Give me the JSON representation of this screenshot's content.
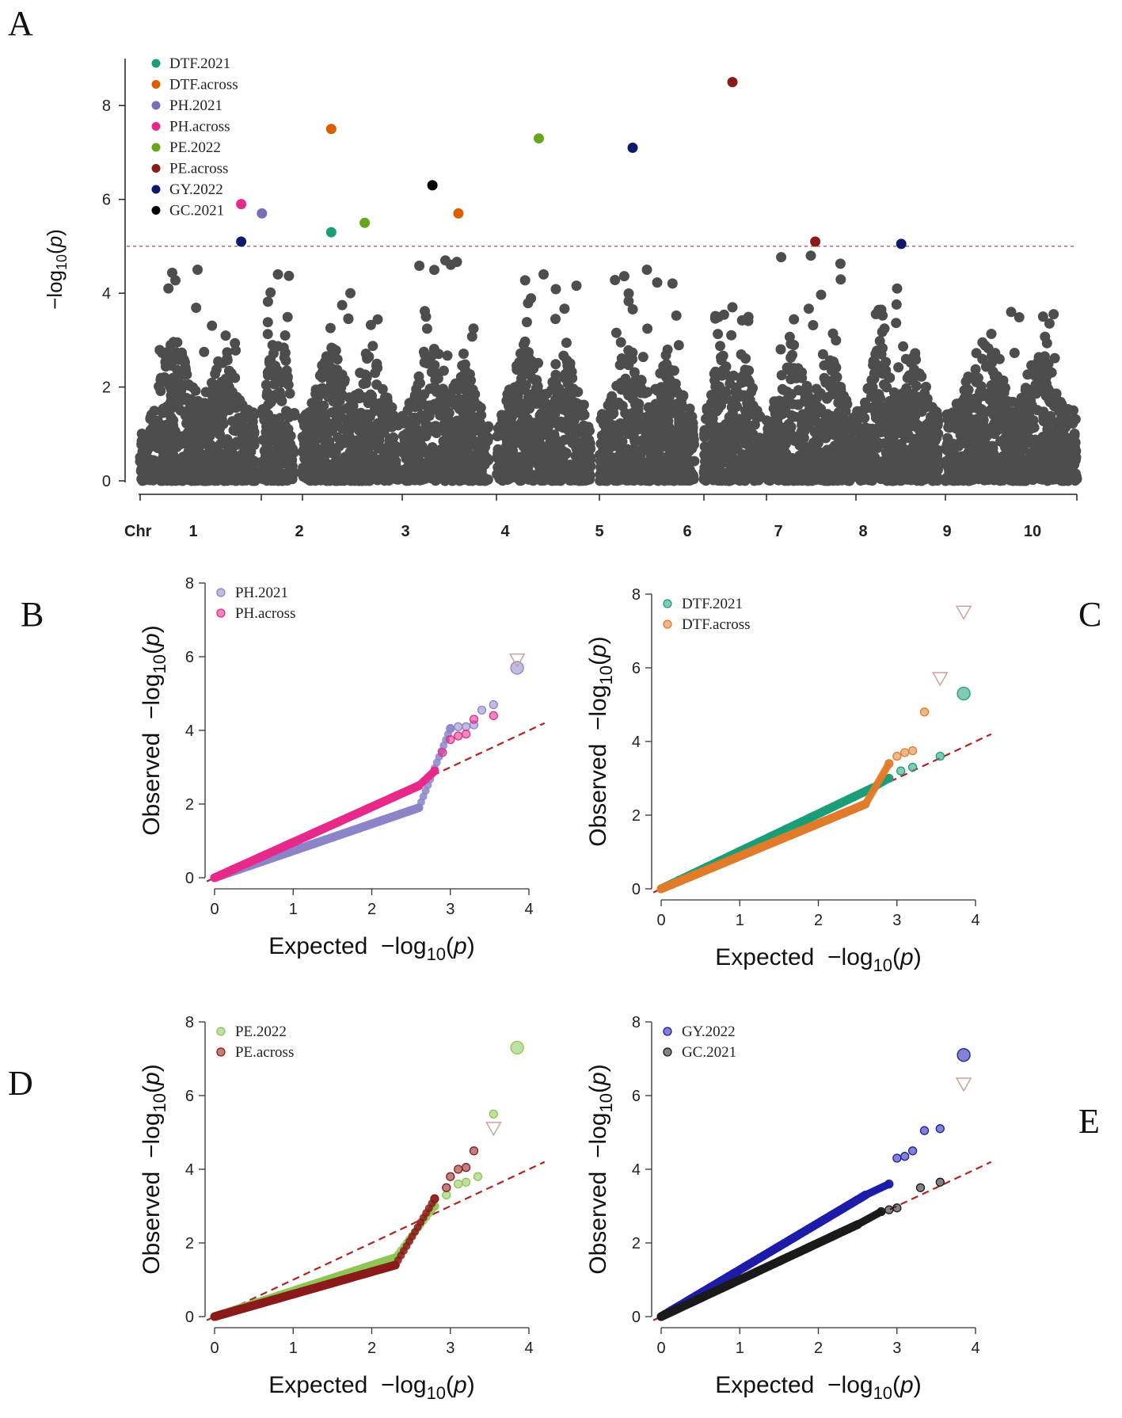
{
  "panel_letters": [
    "A",
    "B",
    "C",
    "D",
    "E"
  ],
  "chart_data": [
    {
      "panel": "A",
      "type": "scatter",
      "subtype": "manhattan",
      "ylabel": "-log10(p)",
      "xlabel": "Chr",
      "ylim": [
        0,
        9
      ],
      "yticks": [
        0,
        2,
        4,
        6,
        8
      ],
      "chromosomes": [
        "1",
        "2",
        "3",
        "4",
        "5",
        "6",
        "7",
        "8",
        "9",
        "10"
      ],
      "threshold": 5,
      "legend": [
        {
          "name": "DTF.2021",
          "color": "#1b9e77"
        },
        {
          "name": "DTF.across",
          "color": "#d95f02"
        },
        {
          "name": "PH.2021",
          "color": "#7570b3"
        },
        {
          "name": "PH.across",
          "color": "#e7298a"
        },
        {
          "name": "PE.2022",
          "color": "#66a61e"
        },
        {
          "name": "PE.across",
          "color": "#8b1a1a"
        },
        {
          "name": "GY.2022",
          "color": "#0d1a6b"
        },
        {
          "name": "GC.2021",
          "color": "#000000"
        }
      ],
      "background_color": "#4d4d4d",
      "significant": [
        {
          "chr": 1,
          "pos": 0.88,
          "trait": "PH.across",
          "y": 5.9
        },
        {
          "chr": 1,
          "pos": 0.88,
          "trait": "GY.2022",
          "y": 5.1
        },
        {
          "chr": 2,
          "pos": 0.02,
          "trait": "PH.2021",
          "y": 5.7
        },
        {
          "chr": 3,
          "pos": 0.3,
          "trait": "DTF.across",
          "y": 7.5
        },
        {
          "chr": 3,
          "pos": 0.3,
          "trait": "DTF.2021",
          "y": 5.3
        },
        {
          "chr": 3,
          "pos": 0.65,
          "trait": "PE.2022",
          "y": 5.5
        },
        {
          "chr": 4,
          "pos": 0.35,
          "trait": "GC.2021",
          "y": 6.3
        },
        {
          "chr": 4,
          "pos": 0.65,
          "trait": "DTF.across",
          "y": 5.7
        },
        {
          "chr": 5,
          "pos": 0.45,
          "trait": "PE.2022",
          "y": 7.3
        },
        {
          "chr": 6,
          "pos": 0.35,
          "trait": "GY.2022",
          "y": 7.1
        },
        {
          "chr": 7,
          "pos": 0.5,
          "trait": "PE.across",
          "y": 8.5
        },
        {
          "chr": 8,
          "pos": 0.55,
          "trait": "PE.across",
          "y": 5.1
        },
        {
          "chr": 9,
          "pos": 0.55,
          "trait": "GY.2022",
          "y": 5.05
        }
      ],
      "chromosome_peaks": [
        4.5,
        4.4,
        4.0,
        4.7,
        4.4,
        4.5,
        3.7,
        4.8,
        4.1,
        3.6
      ]
    },
    {
      "panel": "B",
      "type": "scatter",
      "subtype": "qq",
      "xlabel": "Expected -log10(p)",
      "ylabel": "Observed -log10(p)",
      "xlim": [
        0,
        4
      ],
      "ylim": [
        0,
        8
      ],
      "xticks": [
        0,
        1,
        2,
        3,
        4
      ],
      "yticks": [
        0,
        2,
        4,
        6,
        8
      ],
      "series": [
        {
          "name": "PH.2021",
          "color": "#8b84c9",
          "tail": [
            [
              3.0,
              4.05
            ],
            [
              3.1,
              4.1
            ],
            [
              3.2,
              4.1
            ],
            [
              3.3,
              4.15
            ],
            [
              3.4,
              4.55
            ],
            [
              3.55,
              4.7
            ],
            [
              3.85,
              5.7
            ]
          ],
          "knee": [
            2.6,
            1.9
          ]
        },
        {
          "name": "PH.across",
          "color": "#e7298a",
          "tail": [
            [
              2.8,
              2.9
            ],
            [
              2.9,
              3.4
            ],
            [
              3.0,
              3.75
            ],
            [
              3.1,
              3.85
            ],
            [
              3.2,
              3.9
            ],
            [
              3.3,
              4.3
            ],
            [
              3.55,
              4.4
            ]
          ],
          "knee": [
            2.6,
            2.5
          ],
          "top": [
            3.85,
            5.9
          ]
        }
      ]
    },
    {
      "panel": "C",
      "type": "scatter",
      "subtype": "qq",
      "xlabel": "Expected -log10(p)",
      "ylabel": "Observed -log10(p)",
      "xlim": [
        0,
        4
      ],
      "ylim": [
        0,
        8
      ],
      "xticks": [
        0,
        1,
        2,
        3,
        4
      ],
      "yticks": [
        0,
        2,
        4,
        6,
        8
      ],
      "series": [
        {
          "name": "DTF.2021",
          "color": "#1b9e77",
          "tail": [
            [
              2.9,
              3.0
            ],
            [
              3.05,
              3.2
            ],
            [
              3.2,
              3.3
            ],
            [
              3.55,
              3.6
            ],
            [
              3.85,
              5.3
            ]
          ],
          "knee": [
            2.7,
            2.75
          ]
        },
        {
          "name": "DTF.across",
          "color": "#e07b2a",
          "tail": [
            [
              2.9,
              3.4
            ],
            [
              3.0,
              3.6
            ],
            [
              3.1,
              3.7
            ],
            [
              3.2,
              3.75
            ],
            [
              3.35,
              4.8
            ]
          ],
          "knee": [
            2.6,
            2.3
          ],
          "top": [
            3.85,
            7.5
          ],
          "top2": [
            3.55,
            5.7
          ]
        }
      ]
    },
    {
      "panel": "D",
      "type": "scatter",
      "subtype": "qq",
      "xlabel": "Expected -log10(p)",
      "ylabel": "Observed -log10(p)",
      "xlim": [
        0,
        4
      ],
      "ylim": [
        0,
        8
      ],
      "xticks": [
        0,
        1,
        2,
        3,
        4
      ],
      "yticks": [
        0,
        2,
        4,
        6,
        8
      ],
      "series": [
        {
          "name": "PE.2022",
          "color": "#8dc653",
          "tail": [
            [
              2.8,
              3.0
            ],
            [
              2.95,
              3.3
            ],
            [
              3.1,
              3.6
            ],
            [
              3.2,
              3.65
            ],
            [
              3.35,
              3.8
            ],
            [
              3.55,
              5.5
            ],
            [
              3.85,
              7.3
            ]
          ],
          "knee": [
            2.3,
            1.6
          ]
        },
        {
          "name": "PE.across",
          "color": "#8b1a1a",
          "tail": [
            [
              2.8,
              3.2
            ],
            [
              2.95,
              3.5
            ],
            [
              3.0,
              3.8
            ],
            [
              3.1,
              4.0
            ],
            [
              3.2,
              4.05
            ],
            [
              3.3,
              4.5
            ]
          ],
          "knee": [
            2.3,
            1.4
          ],
          "top": [
            3.55,
            5.1
          ]
        }
      ]
    },
    {
      "panel": "E",
      "type": "scatter",
      "subtype": "qq",
      "xlabel": "Expected -log10(p)",
      "ylabel": "Observed -log10(p)",
      "xlim": [
        0,
        4
      ],
      "ylim": [
        0,
        8
      ],
      "xticks": [
        0,
        1,
        2,
        3,
        4
      ],
      "yticks": [
        0,
        2,
        4,
        6,
        8
      ],
      "series": [
        {
          "name": "GY.2022",
          "color": "#1c1ca8",
          "tail": [
            [
              2.9,
              3.6
            ],
            [
              3.0,
              4.3
            ],
            [
              3.1,
              4.35
            ],
            [
              3.2,
              4.5
            ],
            [
              3.35,
              5.05
            ],
            [
              3.55,
              5.1
            ],
            [
              3.85,
              7.1
            ]
          ],
          "knee": [
            2.6,
            3.3
          ]
        },
        {
          "name": "GC.2021",
          "color": "#1a1a1a",
          "tail": [
            [
              2.8,
              2.85
            ],
            [
              2.9,
              2.9
            ],
            [
              3.0,
              2.95
            ],
            [
              3.3,
              3.5
            ],
            [
              3.55,
              3.65
            ]
          ],
          "knee": [
            2.5,
            2.5
          ],
          "top": [
            3.85,
            6.3
          ]
        }
      ]
    }
  ]
}
